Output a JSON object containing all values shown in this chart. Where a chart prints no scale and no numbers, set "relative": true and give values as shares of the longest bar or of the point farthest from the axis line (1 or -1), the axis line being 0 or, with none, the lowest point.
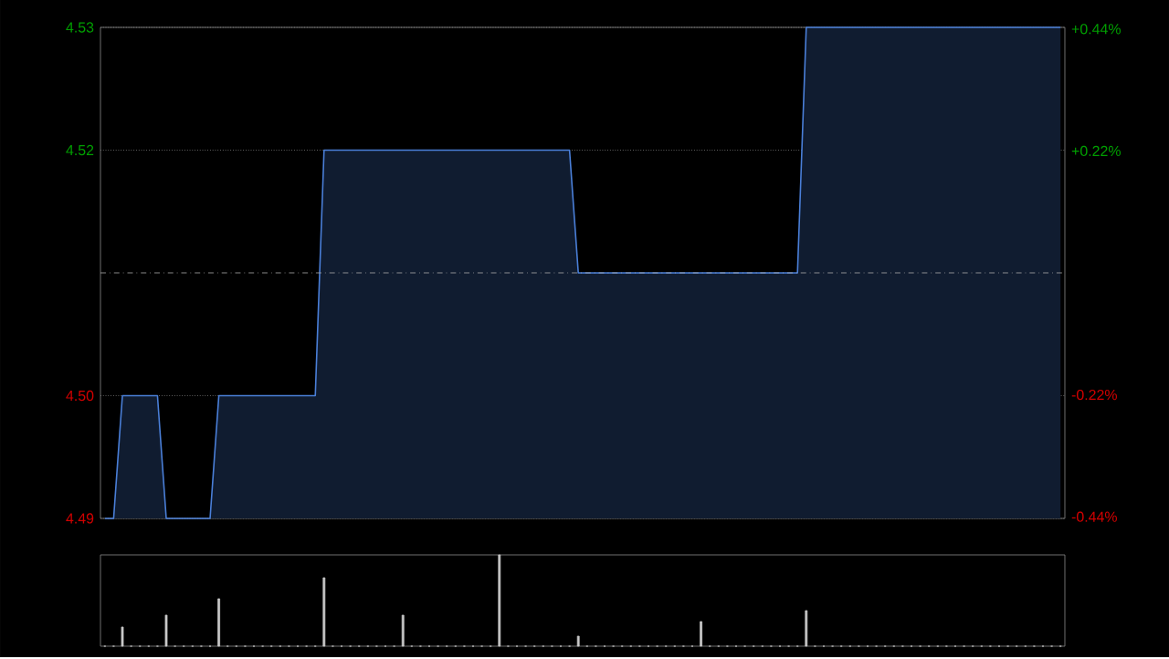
{
  "chart_data": [
    {
      "type": "area",
      "color": "#4a7fd8",
      "categories": [
        null,
        null,
        null,
        null,
        null,
        null,
        null,
        null,
        null,
        null,
        null,
        null,
        null,
        null,
        null,
        null,
        null,
        null,
        null,
        null,
        null,
        null,
        null,
        null,
        null,
        null,
        null,
        null,
        null,
        null,
        null,
        null,
        null,
        null,
        null,
        null,
        null,
        null,
        null,
        null,
        null,
        null,
        null,
        null,
        null,
        null,
        null,
        null,
        null,
        null,
        null,
        null,
        null,
        null,
        null,
        null,
        null,
        null,
        null,
        null,
        null,
        null,
        null,
        null,
        null,
        null,
        null,
        null,
        null,
        null,
        null,
        null,
        null,
        null,
        null,
        null,
        null,
        null,
        null,
        null,
        null,
        null,
        null,
        null,
        null,
        null,
        null,
        null,
        null,
        null,
        null,
        null,
        null,
        null,
        null,
        null,
        null,
        null,
        null,
        null,
        null,
        null,
        null,
        null,
        null,
        null,
        null,
        null,
        null,
        null
      ],
      "values": [
        4.49,
        4.49,
        4.5,
        4.5,
        4.5,
        4.5,
        4.5,
        4.49,
        4.49,
        4.49,
        4.49,
        4.49,
        4.49,
        4.5,
        4.5,
        4.5,
        4.5,
        4.5,
        4.5,
        4.5,
        4.5,
        4.5,
        4.5,
        4.5,
        4.5,
        4.52,
        4.52,
        4.52,
        4.52,
        4.52,
        4.52,
        4.52,
        4.52,
        4.52,
        4.52,
        4.52,
        4.52,
        4.52,
        4.52,
        4.52,
        4.52,
        4.52,
        4.52,
        4.52,
        4.52,
        4.52,
        4.52,
        4.52,
        4.52,
        4.52,
        4.52,
        4.52,
        4.52,
        4.52,
        4.51,
        4.51,
        4.51,
        4.51,
        4.51,
        4.51,
        4.51,
        4.51,
        4.51,
        4.51,
        4.51,
        4.51,
        4.51,
        4.51,
        4.51,
        4.51,
        4.51,
        4.51,
        4.51,
        4.51,
        4.51,
        4.51,
        4.51,
        4.51,
        4.51,
        4.51,
        4.53,
        4.53,
        4.53,
        4.53,
        4.53,
        4.53,
        4.53,
        4.53,
        4.53,
        4.53,
        4.53,
        4.53,
        4.53,
        4.53,
        4.53,
        4.53,
        4.53,
        4.53,
        4.53,
        4.53,
        4.53,
        4.53,
        4.53,
        4.53,
        4.53,
        4.53,
        4.53,
        4.53,
        4.53,
        4.53
      ],
      "ylim": [
        4.49,
        4.53
      ],
      "yticks": [
        {
          "value": 4.49,
          "label": "4.49"
        },
        {
          "value": 4.5,
          "label": "4.50"
        },
        {
          "value": 4.52,
          "label": "4.52"
        },
        {
          "value": 4.53,
          "label": "4.53"
        }
      ],
      "y2lim": [
        -0.443,
        0.443
      ],
      "y2ticks": [
        {
          "value": -0.44,
          "label": "-0.44%"
        },
        {
          "value": -0.22,
          "label": "-0.22%"
        },
        {
          "value": 0.22,
          "label": "+0.22%"
        },
        {
          "value": 0.44,
          "label": "+0.44%"
        }
      ],
      "ref_lines": [
        {
          "axis": "y",
          "value": 4.51,
          "line_style": "dashed"
        }
      ],
      "grid": "y",
      "tick_labels": "y"
    },
    {
      "type": "bar",
      "color": "#c8c8c8",
      "relative": true,
      "categories": [
        null,
        null,
        null,
        null,
        null,
        null,
        null,
        null,
        null,
        null,
        null,
        null,
        null,
        null,
        null,
        null,
        null,
        null,
        null,
        null,
        null,
        null,
        null,
        null,
        null,
        null,
        null,
        null,
        null,
        null,
        null,
        null,
        null,
        null,
        null,
        null,
        null,
        null,
        null,
        null,
        null,
        null,
        null,
        null,
        null,
        null,
        null,
        null,
        null,
        null,
        null,
        null,
        null,
        null,
        null,
        null,
        null,
        null,
        null,
        null,
        null,
        null,
        null,
        null,
        null,
        null,
        null,
        null,
        null,
        null,
        null,
        null,
        null,
        null,
        null,
        null,
        null,
        null,
        null,
        null,
        null,
        null,
        null,
        null,
        null,
        null,
        null,
        null,
        null,
        null,
        null,
        null,
        null,
        null,
        null,
        null,
        null,
        null,
        null,
        null,
        null,
        null,
        null,
        null,
        null,
        null,
        null,
        null,
        null,
        null
      ],
      "values": [
        0,
        0,
        0.21,
        0,
        0,
        0,
        0,
        0.34,
        0,
        0,
        0,
        0,
        0,
        0.52,
        0,
        0,
        0,
        0,
        0,
        0,
        0,
        0,
        0,
        0,
        0,
        0.75,
        0,
        0,
        0,
        0,
        0,
        0,
        0,
        0,
        0.34,
        0,
        0,
        0,
        0,
        0,
        0,
        0,
        0,
        0,
        0,
        1,
        0,
        0,
        0,
        0,
        0,
        0,
        0,
        0,
        0.11,
        0,
        0,
        0,
        0,
        0,
        0,
        0,
        0,
        0,
        0,
        0,
        0,
        0,
        0.27,
        0,
        0,
        0,
        0,
        0,
        0,
        0,
        0,
        0,
        0,
        0,
        0.39,
        0,
        0,
        0,
        0,
        0,
        0,
        0,
        0,
        0,
        0,
        0,
        0,
        0,
        0,
        0,
        0,
        0,
        0,
        0,
        0,
        0,
        0,
        0,
        0,
        0,
        0,
        0,
        0,
        0
      ],
      "tick_labels": false
    }
  ]
}
